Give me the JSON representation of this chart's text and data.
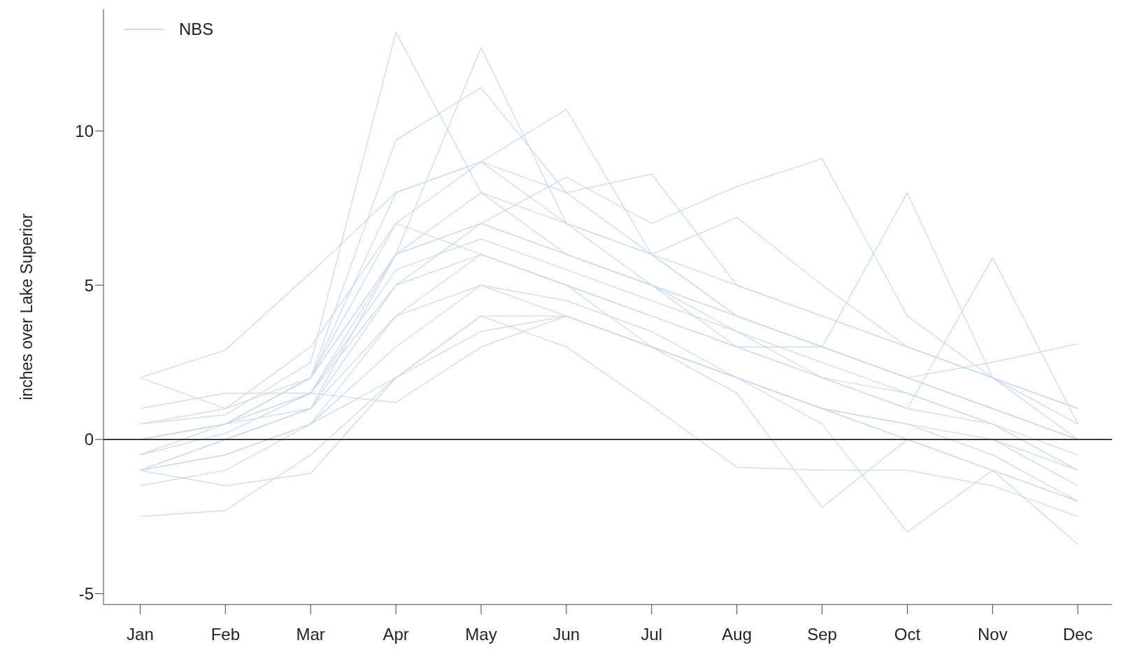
{
  "chart_data": {
    "type": "line",
    "ylabel": "inches over Lake Superior",
    "categories": [
      "Jan",
      "Feb",
      "Mar",
      "Apr",
      "May",
      "Jun",
      "Jul",
      "Aug",
      "Sep",
      "Oct",
      "Nov",
      "Dec"
    ],
    "ylim": [
      -5.35,
      13.95
    ],
    "yticks": [
      -5,
      0,
      5,
      10
    ],
    "grid": false,
    "legend": "top left",
    "marker": "none",
    "line_style": "solid",
    "ref_lines": [
      {
        "axis": "y",
        "value": 0,
        "color": "#000000"
      }
    ],
    "series": [
      {
        "name": "NBS",
        "color": "#c6d9ec",
        "values": [
          -0.5,
          0.2,
          1.5,
          5.5,
          6.5,
          5.5,
          4.5,
          3.5,
          2.5,
          1.5,
          0.5,
          -1
        ]
      },
      {
        "color": "#c6d9ec",
        "values": [
          0.5,
          0.8,
          2.5,
          13.2,
          8,
          6,
          5,
          3.5,
          2,
          1,
          0.5,
          -0.5
        ]
      },
      {
        "color": "#c6d9ec",
        "values": [
          -1,
          0,
          1,
          6,
          12.7,
          7,
          5,
          3,
          2,
          1.5,
          0.5,
          -1
        ]
      },
      {
        "color": "#c6d9ec",
        "values": [
          0,
          0.5,
          2,
          7,
          9,
          10.7,
          6,
          4,
          3,
          2,
          1,
          0
        ]
      },
      {
        "color": "#c6d9ec",
        "values": [
          0,
          0.5,
          1.5,
          5,
          7,
          8.5,
          7,
          8.2,
          9.1,
          4,
          2,
          0.5
        ]
      },
      {
        "color": "#c6d9ec",
        "values": [
          -0.5,
          0.5,
          2,
          6,
          7,
          6,
          5,
          4,
          3,
          8,
          2,
          0
        ]
      },
      {
        "color": "#c6d9ec",
        "values": [
          0,
          0.5,
          1,
          5,
          6,
          5,
          4,
          3,
          2,
          1,
          5.9,
          0.5
        ]
      },
      {
        "color": "#c6d9ec",
        "values": [
          0.5,
          1,
          3,
          7,
          6,
          5,
          4,
          3,
          3,
          2,
          2.5,
          3.1
        ]
      },
      {
        "color": "#c6d9ec",
        "values": [
          -1.5,
          -1,
          0.5,
          3,
          5,
          4,
          3,
          2,
          1,
          0,
          -1,
          -3.4
        ]
      },
      {
        "color": "#c6d9ec",
        "values": [
          -1,
          -0.5,
          0.5,
          4,
          5,
          4.5,
          3.5,
          2,
          0.5,
          -3,
          -1,
          -2
        ]
      },
      {
        "color": "#c6d9ec",
        "values": [
          -1,
          0,
          1,
          4,
          6,
          5,
          3,
          1.5,
          -2.2,
          0,
          0,
          -1.5
        ]
      },
      {
        "color": "#c6d9ec",
        "values": [
          -2.5,
          -2.3,
          -0.5,
          2,
          4,
          4,
          3,
          2,
          1,
          0.5,
          -0.5,
          -2
        ]
      },
      {
        "color": "#c6d9ec",
        "values": [
          -1,
          -0.5,
          0.5,
          2,
          4,
          3,
          1.1,
          -0.9,
          -1,
          -1,
          -1.5,
          -2.5
        ]
      },
      {
        "color": "#c6d9ec",
        "values": [
          1,
          1.5,
          1.5,
          1.2,
          3,
          4,
          3,
          2,
          1,
          0.5,
          0,
          -1
        ]
      },
      {
        "color": "#c6d9ec",
        "values": [
          2,
          2.9,
          5.4,
          8,
          9,
          7,
          6,
          5,
          4,
          3,
          2,
          1
        ]
      },
      {
        "color": "#c6d9ec",
        "values": [
          2,
          1,
          2,
          6,
          7,
          6,
          5,
          4,
          3,
          2,
          1,
          0
        ]
      },
      {
        "color": "#c6d9ec",
        "values": [
          0,
          0.5,
          1.5,
          6,
          8,
          7,
          6,
          7.2,
          5,
          3,
          2,
          1
        ]
      },
      {
        "color": "#c6d9ec",
        "values": [
          0,
          0.5,
          2,
          8,
          9,
          8,
          8.6,
          5,
          4,
          3,
          2,
          1
        ]
      },
      {
        "color": "#c6d9ec",
        "values": [
          -1,
          -1.5,
          -1.1,
          2,
          3.5,
          4,
          3,
          2,
          1,
          0,
          -1,
          -2
        ]
      },
      {
        "color": "#c6d9ec",
        "values": [
          0,
          0.5,
          2,
          9.7,
          11.4,
          8,
          6,
          4,
          3,
          2,
          1,
          0
        ]
      }
    ]
  }
}
